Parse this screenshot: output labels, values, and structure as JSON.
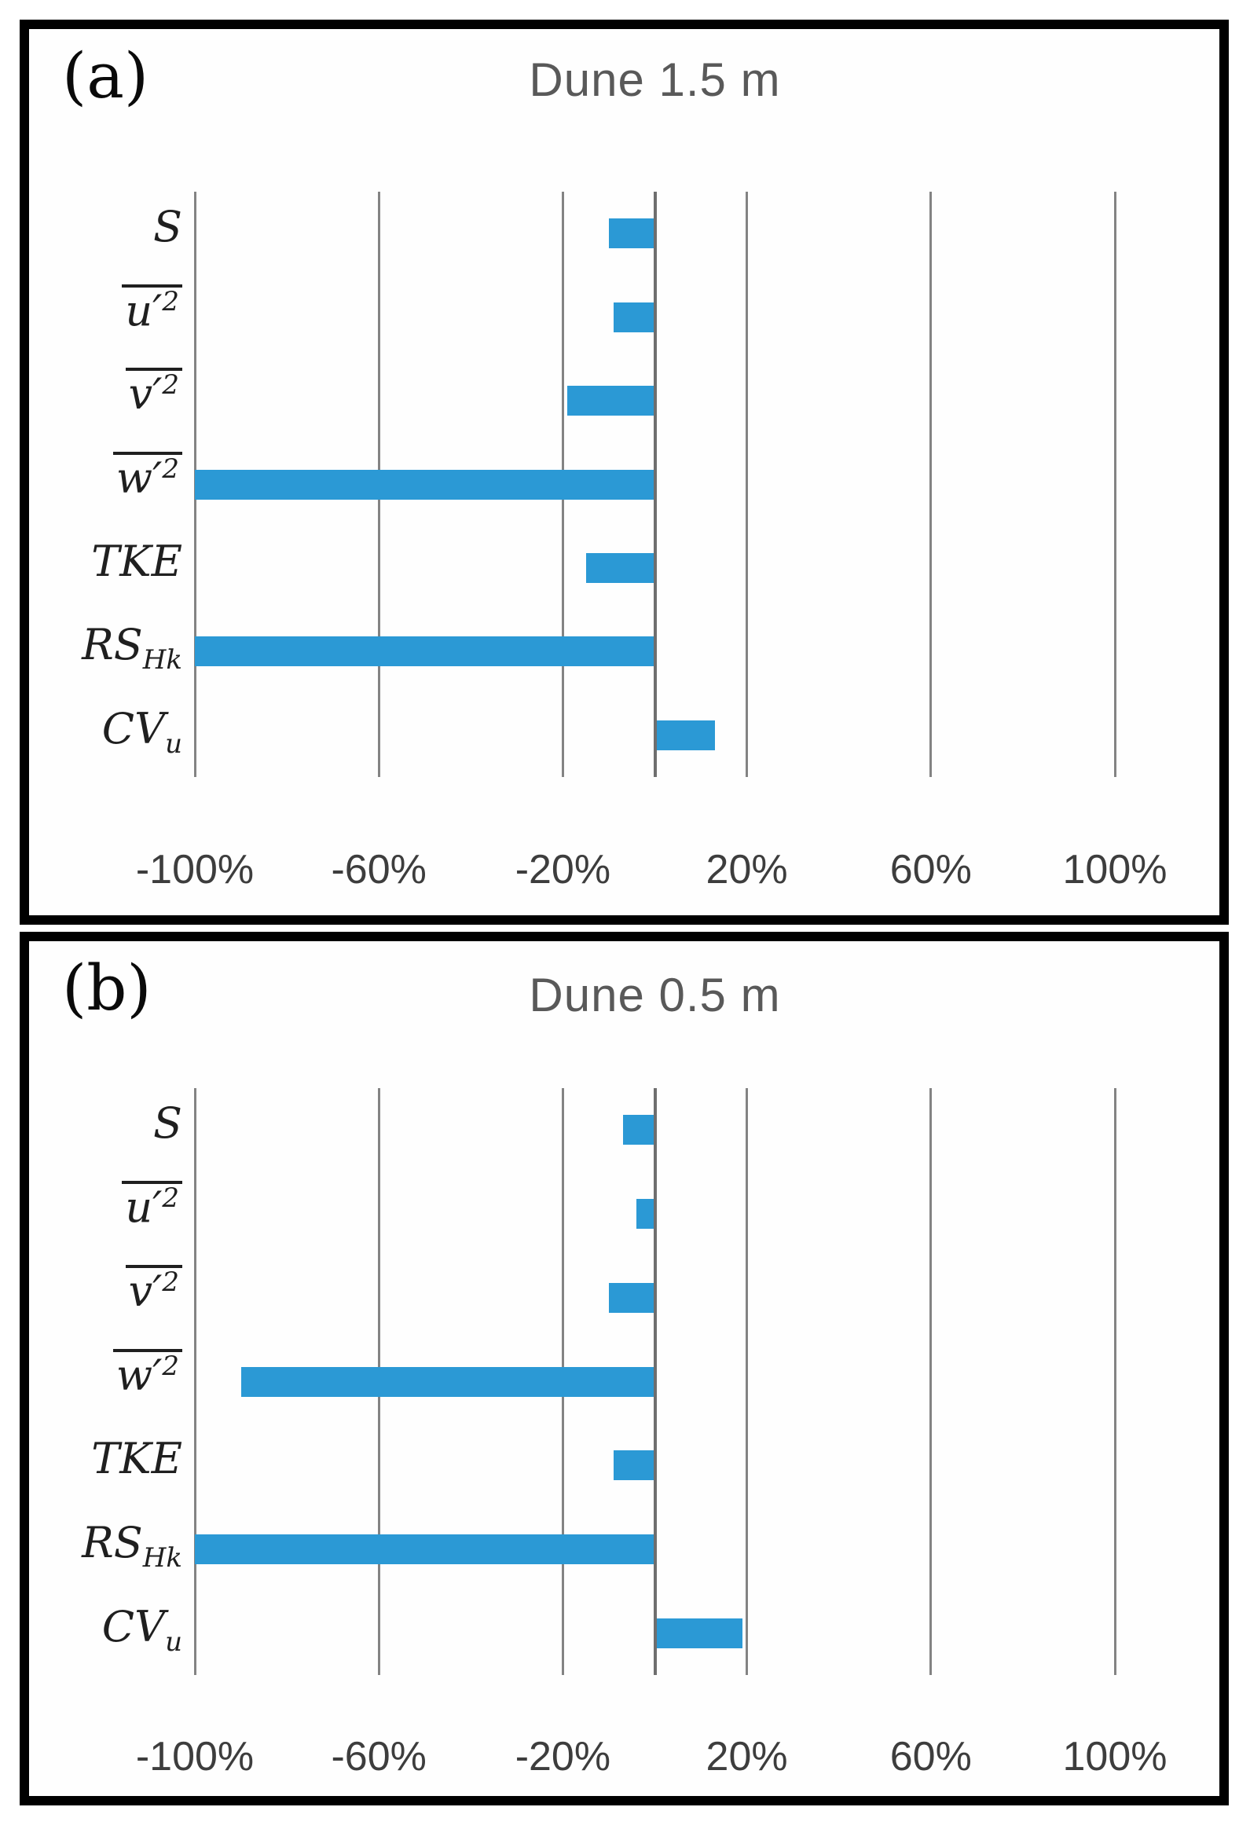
{
  "figure": {
    "background": "#ffffff",
    "bar_color": "#2B99D5",
    "grid_color": "#838383",
    "zero_line_color": "#6E6E6E",
    "title_color": "#595959",
    "tick_color": "#3D3D3D",
    "category_label_color": "#1F1F1F",
    "panel_border_color": "#000000"
  },
  "category_format": [
    {
      "key": "S",
      "base": "S",
      "sup": "",
      "sub": "",
      "overline": false
    },
    {
      "key": "u2",
      "base": "u′",
      "sup": "2",
      "sub": "",
      "overline": true
    },
    {
      "key": "v2",
      "base": "v′",
      "sup": "2",
      "sub": "",
      "overline": true
    },
    {
      "key": "w2",
      "base": "w′",
      "sup": "2",
      "sub": "",
      "overline": true
    },
    {
      "key": "TKE",
      "base": "TKE",
      "sup": "",
      "sub": "",
      "overline": false
    },
    {
      "key": "RS_Hk",
      "base": "RS",
      "sup": "",
      "sub": "Hk",
      "overline": false
    },
    {
      "key": "CV_u",
      "base": "CV",
      "sup": "",
      "sub": "u",
      "overline": false
    }
  ],
  "x_axis": {
    "range": [
      -100,
      100
    ],
    "ticks": [
      {
        "value": -100,
        "label": "-100%"
      },
      {
        "value": -60,
        "label": "-60%"
      },
      {
        "value": -20,
        "label": "-20%"
      },
      {
        "value": 20,
        "label": "20%"
      },
      {
        "value": 60,
        "label": "60%"
      },
      {
        "value": 100,
        "label": "100%"
      }
    ]
  },
  "chart_data": [
    {
      "type": "bar",
      "orientation": "horizontal",
      "panel_label": "(a)",
      "title": "Dune 1.5 m",
      "categories": [
        "S",
        "u'2",
        "v'2",
        "w'2",
        "TKE",
        "RS_Hk",
        "CV_u"
      ],
      "values": [
        -10,
        -9,
        -19,
        -100,
        -15,
        -100,
        13
      ],
      "unit": "%",
      "xlim": [
        -100,
        100
      ],
      "xticks": [
        -100,
        -60,
        -20,
        20,
        60,
        100
      ],
      "grid": true,
      "zero_axis": true,
      "legend": false
    },
    {
      "type": "bar",
      "orientation": "horizontal",
      "panel_label": "(b)",
      "title": "Dune 0.5 m",
      "categories": [
        "S",
        "u'2",
        "v'2",
        "w'2",
        "TKE",
        "RS_Hk",
        "CV_u"
      ],
      "values": [
        -7,
        -4,
        -10,
        -90,
        -9,
        -100,
        19
      ],
      "unit": "%",
      "xlim": [
        -100,
        100
      ],
      "xticks": [
        -100,
        -60,
        -20,
        20,
        60,
        100
      ],
      "grid": true,
      "zero_axis": true,
      "legend": false
    }
  ]
}
